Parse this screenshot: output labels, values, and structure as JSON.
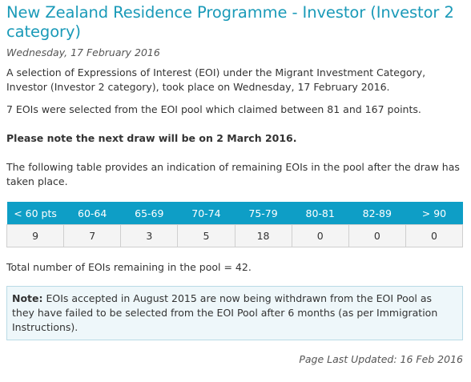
{
  "title": "New Zealand Residence Programme - Investor (Investor 2 category)",
  "date": "Wednesday, 17 February 2016",
  "intro": "A selection of Expressions of Interest (EOI) under the Migrant Investment Category, Investor (Investor 2 category), took place on Wednesday, 17 February 2016.",
  "selected": "7 EOIs were selected from the EOI pool which claimed between 81 and 167 points.",
  "next_draw": "Please note the next draw will be on 2 March 2016.",
  "table_intro": "The following table provides an indication of remaining EOIs in the pool after the draw has taken place.",
  "table": {
    "headers": [
      "< 60 pts",
      "60-64",
      "65-69",
      "70-74",
      "75-79",
      "80-81",
      "82-89",
      "> 90"
    ],
    "values": [
      "9",
      "7",
      "3",
      "5",
      "18",
      "0",
      "0",
      "0"
    ]
  },
  "total": "Total number of EOIs remaining in the pool = 42.",
  "note": {
    "label": "Note:",
    "text": " EOIs accepted in August 2015 are now being withdrawn from the EOI Pool as they have failed to be selected from the EOI Pool after 6 months (as per Immigration Instructions)."
  },
  "updated": "Page Last Updated: 16 Feb 2016",
  "colors": {
    "title": "#1a9ab8",
    "header_bg": "#0e9ec6",
    "note_bg": "#eef7fa"
  }
}
